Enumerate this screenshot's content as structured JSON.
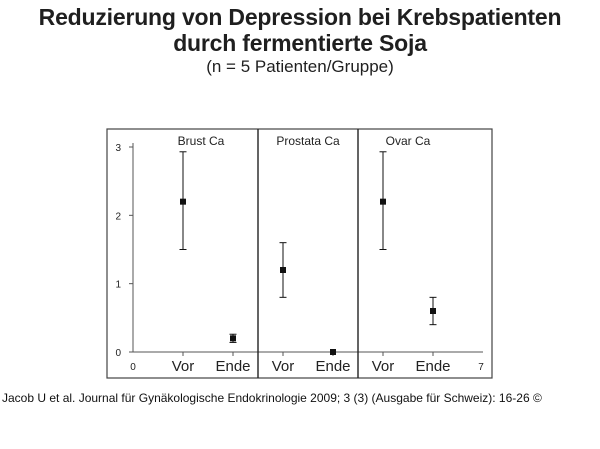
{
  "header": {
    "title_line1": "Reduzierung von Depression bei Krebspatienten",
    "title_line2": "durch fermentierte Soja",
    "subtitle": "(n = 5 Patienten/Gruppe)"
  },
  "citation": "Jacob U et al. Journal für Gynäkologische Endokrinologie 2009; 3 (3) (Ausgabe für Schweiz): 16-26 ©",
  "chart_data": {
    "type": "scatter",
    "title": "Reduzierung von Depression bei Krebspatienten durch fermentierte Soja",
    "subtitle": "(n = 5 Patienten/Gruppe)",
    "xlim": [
      0,
      7
    ],
    "ylim": [
      0,
      3
    ],
    "x_end_labels": [
      "0",
      "7"
    ],
    "y_ticks": [
      0,
      1,
      2,
      3
    ],
    "x_tick_positions": [
      1,
      2,
      3,
      4,
      5,
      6
    ],
    "groups": [
      {
        "name": "Brust Ca",
        "x_range": [
          0.5,
          2.5
        ]
      },
      {
        "name": "Prostata Ca",
        "x_range": [
          2.5,
          4.5
        ]
      },
      {
        "name": "Ovar Ca",
        "x_range": [
          4.5,
          6.5
        ]
      }
    ],
    "group_dividers": [
      2.5,
      4.5
    ],
    "points": [
      {
        "group": "Brust Ca",
        "label": "Vor",
        "x": 1,
        "y": 2.2,
        "err_low": 1.5,
        "err_high": 2.93
      },
      {
        "group": "Brust Ca",
        "label": "Ende",
        "x": 2,
        "y": 0.2,
        "err_low": 0.14,
        "err_high": 0.26
      },
      {
        "group": "Prostata Ca",
        "label": "Vor",
        "x": 3,
        "y": 1.2,
        "err_low": 0.8,
        "err_high": 1.6
      },
      {
        "group": "Prostata Ca",
        "label": "Ende",
        "x": 4,
        "y": 0.0,
        "err_low": 0.0,
        "err_high": 0.0
      },
      {
        "group": "Ovar Ca",
        "label": "Vor",
        "x": 5,
        "y": 2.2,
        "err_low": 1.5,
        "err_high": 2.93
      },
      {
        "group": "Ovar Ca",
        "label": "Ende",
        "x": 6,
        "y": 0.6,
        "err_low": 0.4,
        "err_high": 0.8
      }
    ],
    "grid": false,
    "colors": {
      "mark": "#111111",
      "axis": "#555555",
      "divider": "#222222",
      "frame": "#444444"
    }
  }
}
